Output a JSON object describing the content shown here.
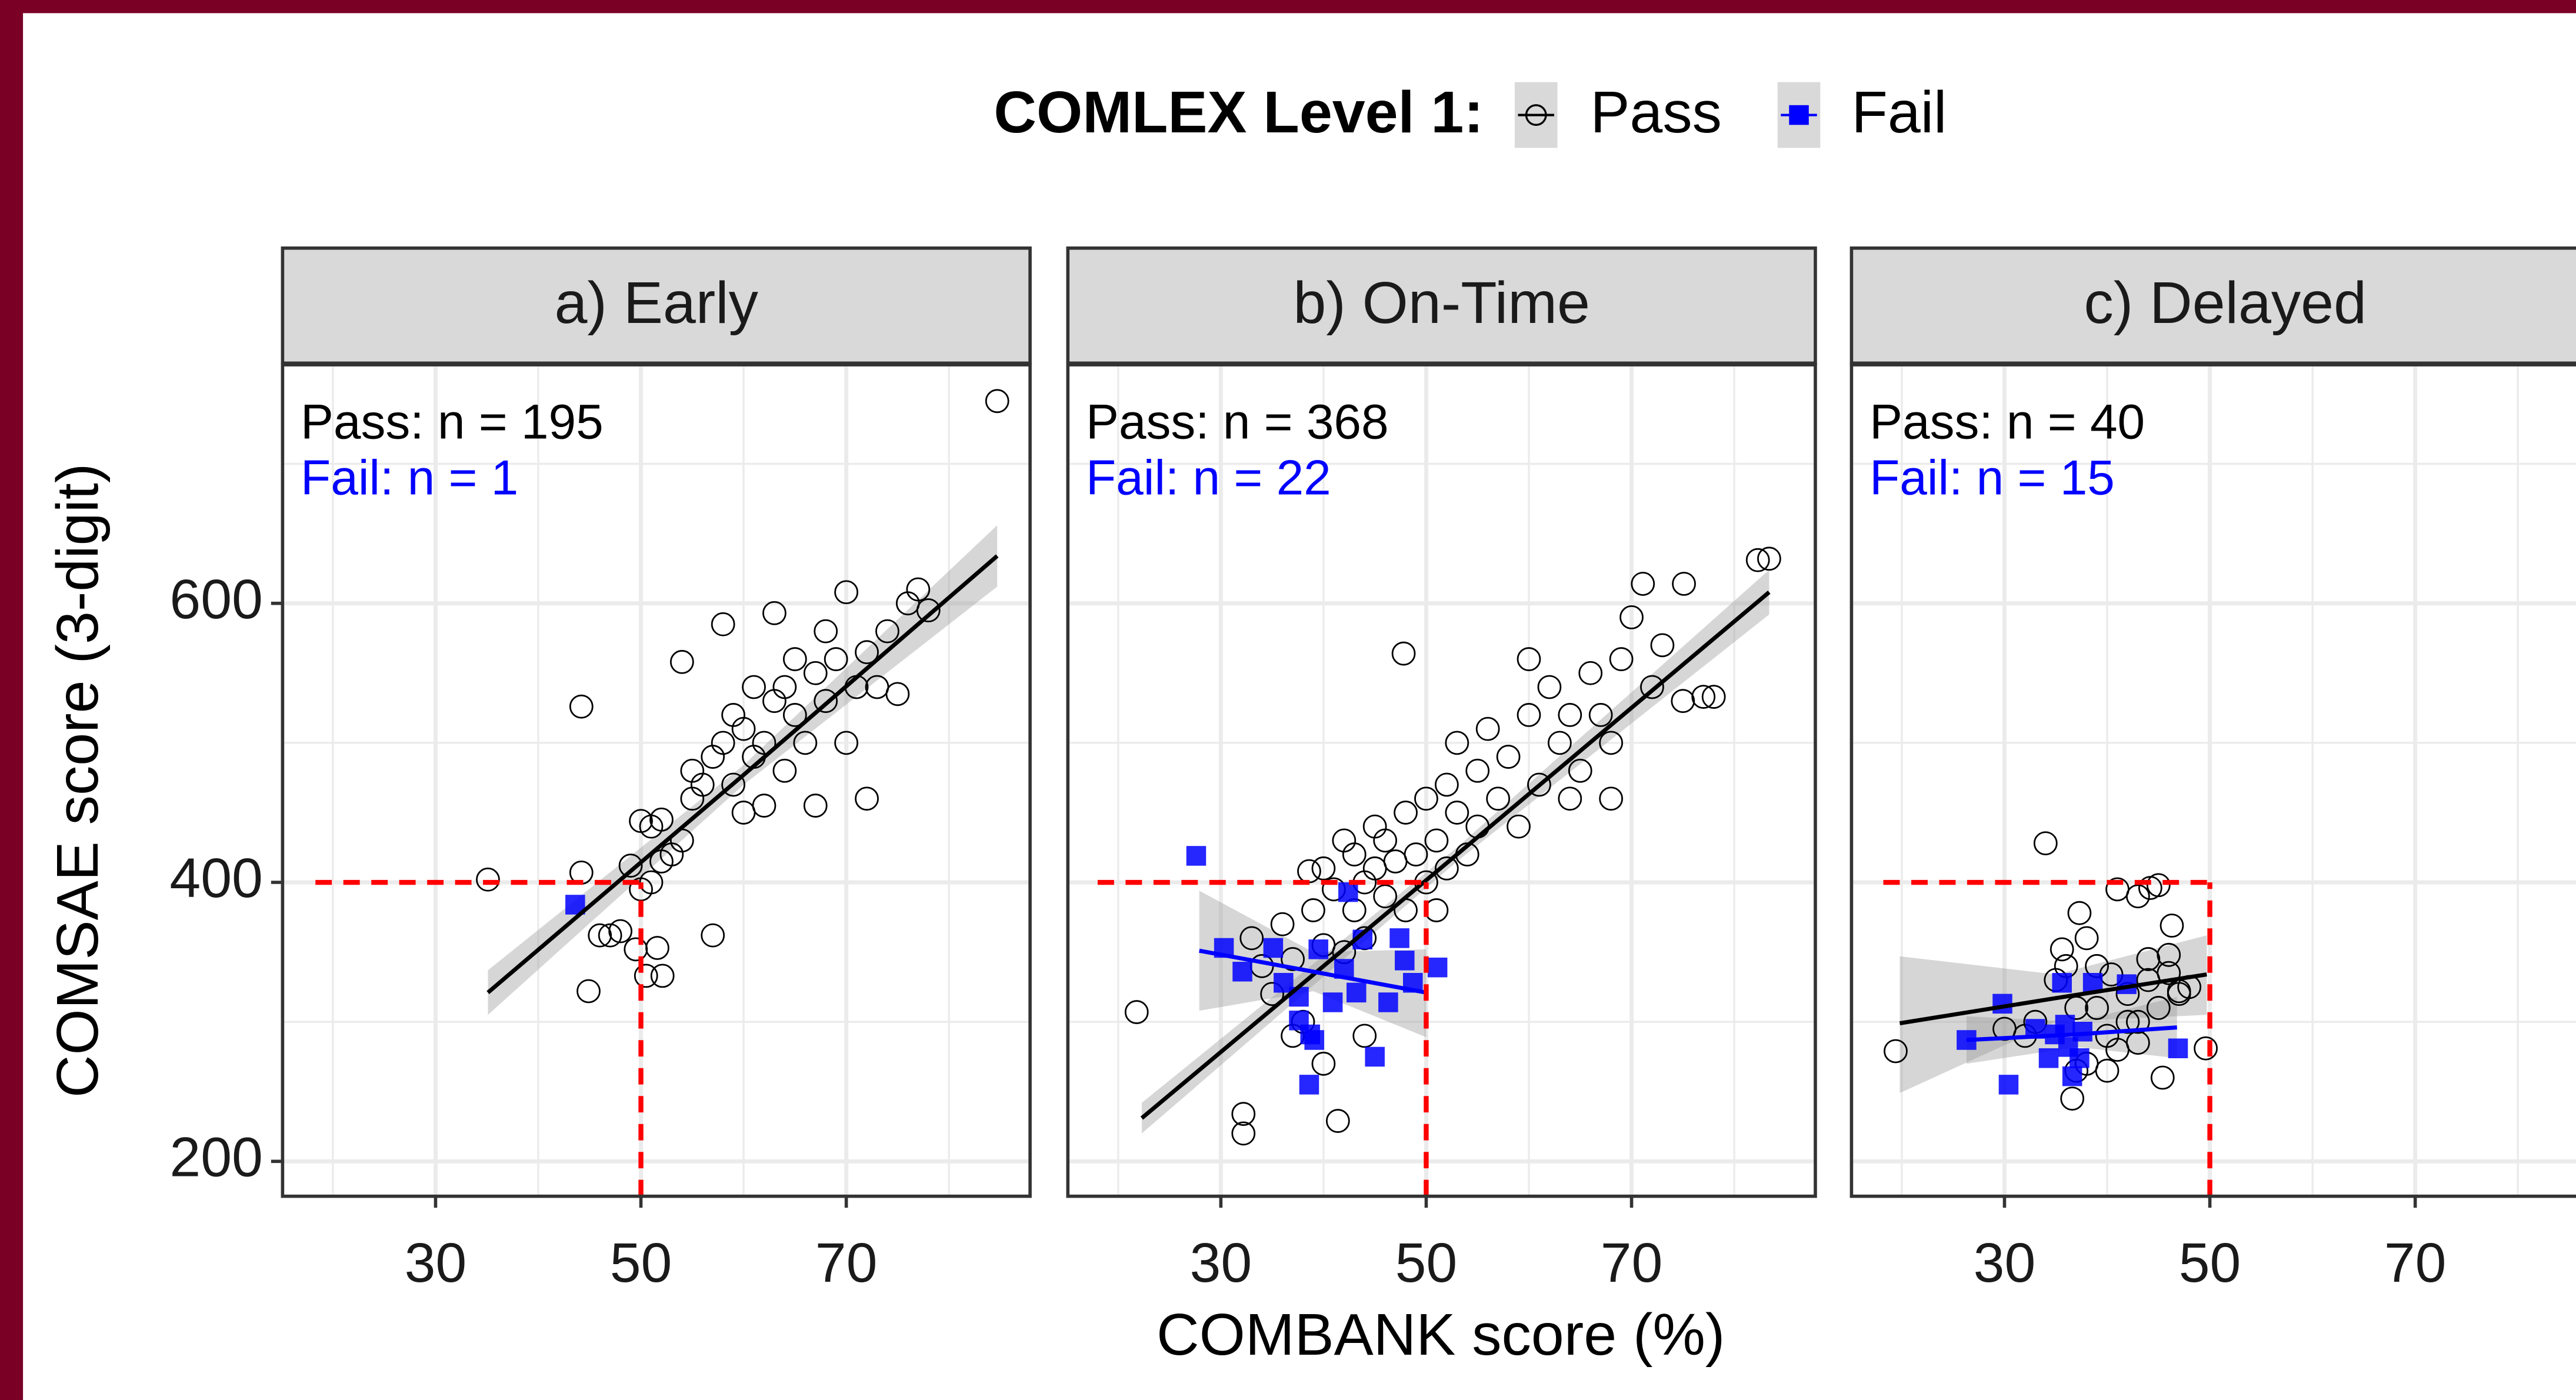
{
  "legend_title": "COMLEX Level 1:",
  "x_label": "COMBANK score (%)",
  "y_label": "COMSAE score (3-digit)",
  "chart_data": [
    {
      "type": "scatter",
      "title": "a) Early",
      "annotations": [
        "Pass: n = 195",
        "Fail: n = 1"
      ],
      "xlim": [
        15.1,
        87.9
      ],
      "ylim": [
        175,
        771
      ],
      "xticks": [
        30,
        50,
        70
      ],
      "yticks": [
        200,
        400,
        600
      ],
      "minor_xticks": [
        20,
        40,
        60,
        80
      ],
      "minor_yticks": [
        300,
        500,
        700
      ],
      "grid": true,
      "ref_x": 50,
      "ref_y": 400,
      "ref_start_x": 18.3,
      "ref_color": "#ff0000",
      "series": [
        {
          "name": "Pass",
          "color": "#000000",
          "marker": "circle",
          "x": [
            35.1,
            44.2,
            84.7,
            44.9,
            44.2,
            46,
            47,
            48,
            49.5,
            50.5,
            51.6,
            52.1,
            50,
            51,
            52,
            53,
            51,
            52,
            54,
            55,
            55,
            56,
            57,
            57,
            58,
            58,
            59,
            59,
            60,
            60,
            61,
            61,
            62,
            62,
            63,
            63,
            64,
            64,
            65,
            65,
            66,
            67,
            67,
            68,
            68,
            69,
            70,
            70,
            71,
            72,
            72,
            73,
            74,
            75,
            76,
            77,
            78,
            54,
            49,
            50
          ],
          "values": [
            402,
            526,
            745,
            322,
            407,
            362,
            362,
            365,
            352,
            333,
            353,
            333,
            395,
            400,
            415,
            420,
            440,
            445,
            430,
            460,
            480,
            470,
            490,
            362,
            585,
            500,
            470,
            520,
            510,
            450,
            540,
            490,
            500,
            455,
            593,
            530,
            540,
            480,
            520,
            560,
            500,
            550,
            455,
            580,
            530,
            560,
            608,
            500,
            540,
            460,
            565,
            540,
            580,
            535,
            600,
            610,
            595,
            558,
            412,
            444
          ],
          "fit_x": [
            35.1,
            60,
            84.7
          ],
          "fit_y": [
            321,
            477,
            634
          ],
          "fit_lower": [
            305,
            470,
            612
          ],
          "fit_upper": [
            337,
            484,
            656
          ]
        },
        {
          "name": "Fail",
          "color": "#0000ff",
          "marker": "square",
          "x": [
            43.6
          ],
          "values": [
            384
          ]
        }
      ]
    },
    {
      "type": "scatter",
      "title": "b) On-Time",
      "annotations": [
        "Pass: n = 368",
        "Fail: n = 22"
      ],
      "xlim": [
        15.1,
        87.9
      ],
      "ylim": [
        175,
        771
      ],
      "xticks": [
        30,
        50,
        70
      ],
      "yticks": [
        200,
        400,
        600
      ],
      "minor_xticks": [
        20,
        40,
        60,
        80
      ],
      "minor_yticks": [
        300,
        500,
        700
      ],
      "grid": true,
      "ref_x": 50,
      "ref_y": 400,
      "ref_start_x": 18,
      "ref_color": "#ff0000",
      "series": [
        {
          "name": "Pass",
          "color": "#000000",
          "marker": "circle",
          "x": [
            21.8,
            32.2,
            32.2,
            41.4,
            47.8,
            82.3,
            83.4,
            71.1,
            75.1,
            38.6,
            33,
            34,
            35,
            36,
            37,
            38,
            39,
            40,
            40,
            41,
            42,
            42,
            43,
            43,
            44,
            44,
            45,
            45,
            46,
            46,
            47,
            48,
            48,
            49,
            50,
            50,
            51,
            51,
            52,
            52,
            53,
            53,
            54,
            55,
            55,
            56,
            57,
            58,
            59,
            60,
            60,
            61,
            62,
            63,
            64,
            65,
            66,
            67,
            68,
            69,
            70,
            72,
            73,
            75,
            77,
            78,
            64,
            68,
            37,
            40,
            44
          ],
          "values": [
            307,
            234,
            220,
            229,
            564,
            631,
            632,
            614,
            614,
            408,
            360,
            340,
            320,
            370,
            345,
            300,
            380,
            355,
            410,
            395,
            350,
            430,
            380,
            420,
            400,
            360,
            410,
            440,
            390,
            430,
            415,
            450,
            380,
            420,
            400,
            460,
            430,
            380,
            470,
            410,
            450,
            500,
            420,
            480,
            440,
            510,
            460,
            490,
            440,
            520,
            560,
            470,
            540,
            500,
            520,
            480,
            550,
            520,
            500,
            560,
            590,
            540,
            570,
            530,
            533,
            533,
            460,
            460,
            290,
            270,
            290
          ],
          "fit_x": [
            22.3,
            53,
            83.4
          ],
          "fit_y": [
            231,
            420,
            608
          ],
          "fit_lower": [
            220,
            415,
            592
          ],
          "fit_upper": [
            242,
            425,
            624
          ]
        },
        {
          "name": "Fail",
          "color": "#0000ff",
          "marker": "square",
          "x": [
            27.6,
            30.3,
            32.1,
            35.1,
            36.1,
            37.6,
            38.6,
            39.1,
            40.9,
            42,
            42.4,
            43.8,
            45,
            46.3,
            47.4,
            47.9,
            48.7,
            51.1,
            39.5,
            43.2,
            37.6,
            38.7
          ],
          "values": [
            419,
            353,
            336,
            353,
            328,
            301,
            255,
            287,
            314,
            338,
            393,
            359,
            275,
            314,
            360,
            344,
            328,
            339,
            352,
            321,
            318,
            291
          ],
          "fit_x": [
            27.9,
            39,
            50
          ],
          "fit_y": [
            351,
            336,
            321
          ],
          "fit_lower": [
            308,
            322,
            289
          ],
          "fit_upper": [
            394,
            350,
            352
          ]
        }
      ]
    },
    {
      "type": "scatter",
      "title": "c) Delayed",
      "annotations": [
        "Pass: n = 40",
        "Fail: n = 15"
      ],
      "xlim": [
        15.1,
        87.9
      ],
      "ylim": [
        175,
        771
      ],
      "xticks": [
        30,
        50,
        70
      ],
      "yticks": [
        200,
        400,
        600
      ],
      "minor_xticks": [
        20,
        40,
        60,
        80
      ],
      "minor_yticks": [
        300,
        500,
        700
      ],
      "grid": true,
      "ref_x": 50,
      "ref_y": 400,
      "ref_start_x": 18.2,
      "ref_color": "#ff0000",
      "series": [
        {
          "name": "Pass",
          "color": "#000000",
          "marker": "circle",
          "x": [
            19.4,
            34,
            35.6,
            37.3,
            49.6,
            45.4,
            36.6,
            40.4,
            44.2,
            46.3,
            43,
            41,
            38,
            39,
            42,
            44,
            46,
            47,
            43,
            40,
            37,
            33,
            35,
            45,
            48,
            41,
            38,
            42,
            36,
            39,
            44,
            46,
            30,
            32,
            45,
            47,
            40,
            43,
            37
          ],
          "values": [
            279,
            428,
            352,
            378,
            281,
            260,
            245,
            334,
            396,
            369,
            390,
            395,
            360,
            340,
            320,
            345,
            335,
            322,
            300,
            290,
            310,
            300,
            330,
            310,
            325,
            280,
            270,
            300,
            340,
            310,
            330,
            348,
            295,
            290,
            398,
            320,
            265,
            285,
            265
          ],
          "fit_x": [
            19.8,
            35,
            49.7
          ],
          "fit_y": [
            299,
            317,
            334
          ],
          "fit_lower": [
            249,
            300,
            305
          ],
          "fit_upper": [
            347,
            334,
            362
          ]
        },
        {
          "name": "Fail",
          "color": "#0000ff",
          "marker": "square",
          "x": [
            26.3,
            29.8,
            30.4,
            33,
            34.3,
            35.6,
            36.2,
            36.6,
            37.6,
            38.6,
            35.9,
            41.9,
            46.9,
            37.3,
            34.9
          ],
          "values": [
            287,
            313,
            255,
            295,
            274,
            328,
            282,
            261,
            293,
            328,
            298,
            327,
            281,
            274,
            291
          ],
          "fit_x": [
            26.3,
            37,
            46.8
          ],
          "fit_y": [
            287,
            291,
            296
          ],
          "fit_lower": [
            270,
            282,
            274
          ],
          "fit_upper": [
            304,
            300,
            318
          ]
        }
      ]
    }
  ]
}
